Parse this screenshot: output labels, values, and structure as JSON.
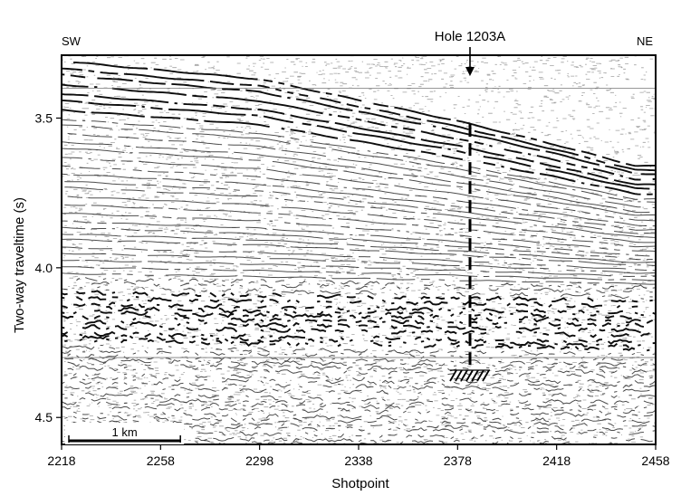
{
  "chart_data": {
    "type": "seismic-section",
    "title": "",
    "xlabel": "Shotpoint",
    "ylabel": "Two-way traveltime (s)",
    "xlim": [
      2218,
      2458
    ],
    "ylim": [
      3.29,
      4.59
    ],
    "y_inverted": true,
    "x_ticks": [
      2218,
      2258,
      2298,
      2338,
      2378,
      2418,
      2458
    ],
    "x_tick_labels": [
      "2218",
      "2258",
      "2298",
      "2338",
      "2378",
      "2418",
      "2458"
    ],
    "y_ticks": [
      3.5,
      4.0,
      4.5
    ],
    "y_tick_labels": [
      "3.5",
      "4.0",
      "4.5"
    ],
    "direction_left": "SW",
    "direction_right": "NE",
    "hole": {
      "label": "Hole 1203A",
      "shotpoint": 2383,
      "penetration_top_s": 3.52,
      "penetration_bottom_s": 4.33
    },
    "seafloor": {
      "x": [
        2218,
        2298,
        2378,
        2418,
        2450
      ],
      "y": [
        3.31,
        3.37,
        3.51,
        3.59,
        3.66
      ]
    },
    "grid_horizontal_s": [
      3.4,
      4.3
    ],
    "scale_bar": {
      "label": "1 km",
      "from_shotpoint": 2218,
      "to_shotpoint": 2266
    },
    "grid": false,
    "legend": "none"
  }
}
